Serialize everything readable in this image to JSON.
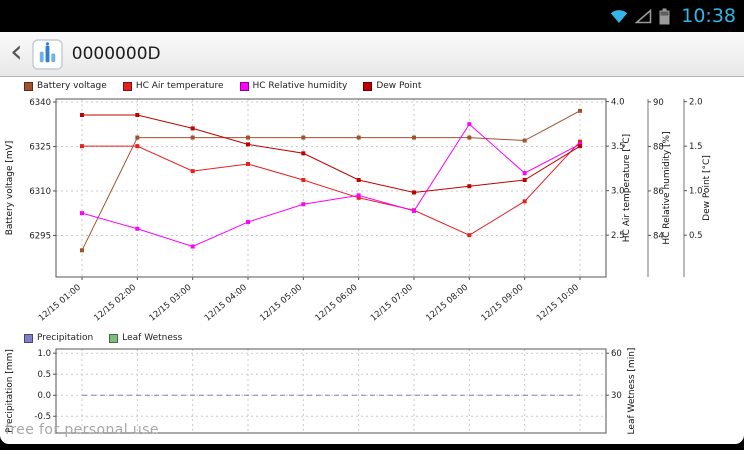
{
  "status_bar": {
    "time": "10:38"
  },
  "app_bar": {
    "back_glyph": "‹",
    "title": "0000000D"
  },
  "watermark": "free for personal use",
  "chart_data": [
    {
      "type": "line",
      "title": "",
      "legend_position": "top-left",
      "grid": true,
      "x_tick_labels_visible": true,
      "categories": [
        "12/15 01:00",
        "12/15 02:00",
        "12/15 03:00",
        "12/15 04:00",
        "12/15 05:00",
        "12/15 06:00",
        "12/15 07:00",
        "12/15 08:00",
        "12/15 09:00",
        "12/15 10:00"
      ],
      "left_axis": {
        "label": "Battery voltage [mV]",
        "ticks": [
          "6340",
          "6325",
          "6310",
          "6295"
        ],
        "range": [
          6281,
          6341
        ]
      },
      "right_axes": [
        {
          "label": "HC Air temperature [°C]",
          "ticks": [
            "4.0",
            "3.5",
            "3.0",
            "2.5"
          ],
          "range": [
            2.03,
            4.03
          ]
        },
        {
          "label": "HC Relative humidity [%]",
          "ticks": [
            "90",
            "88",
            "86",
            "84"
          ],
          "range": [
            82.13,
            90.13
          ]
        },
        {
          "label": "Dew Point [°C]",
          "ticks": [
            "2.0",
            "1.5",
            "1.0",
            "0.5"
          ],
          "range": [
            0.03,
            2.03
          ]
        }
      ],
      "series": [
        {
          "name": "Battery voltage",
          "color": "#a0522d",
          "axis": "left",
          "values": [
            6290,
            6328,
            6328,
            6328,
            6328,
            6328,
            6328,
            6328,
            6327,
            6337
          ]
        },
        {
          "name": "HC Air temperature",
          "color": "#e62020",
          "axis": "right0",
          "values": [
            3.5,
            3.5,
            3.22,
            3.3,
            3.12,
            2.92,
            2.78,
            2.5,
            2.88,
            3.55
          ]
        },
        {
          "name": "HC Relative humidity",
          "color": "#ff00ff",
          "axis": "right1",
          "values": [
            85.0,
            84.3,
            83.5,
            84.6,
            85.4,
            85.8,
            85.1,
            89.0,
            86.8,
            88.1
          ]
        },
        {
          "name": "Dew Point",
          "color": "#bf0000",
          "axis": "right2",
          "values": [
            1.85,
            1.85,
            1.7,
            1.52,
            1.42,
            1.12,
            0.98,
            1.05,
            1.12,
            1.5
          ]
        }
      ]
    },
    {
      "type": "line",
      "title": "",
      "legend_position": "top-left",
      "grid": true,
      "x_tick_labels_visible": false,
      "categories": [
        "12/15 01:00",
        "12/15 02:00",
        "12/15 03:00",
        "12/15 04:00",
        "12/15 05:00",
        "12/15 06:00",
        "12/15 07:00",
        "12/15 08:00",
        "12/15 09:00",
        "12/15 10:00"
      ],
      "left_axis": {
        "label": "Precipitation [mm]",
        "ticks": [
          "1.0",
          "0.5",
          "0.0",
          "-0.5"
        ],
        "range": [
          -0.9,
          1.1
        ]
      },
      "right_axes": [
        {
          "label": "Leaf Wetness [min]",
          "ticks": [
            "60",
            "30"
          ],
          "range": [
            3,
            63
          ]
        }
      ],
      "series": [
        {
          "name": "Precipitation",
          "color": "#8080c8",
          "axis": "left",
          "dashed": true,
          "values": [
            0,
            0,
            0,
            0,
            0,
            0,
            0,
            0,
            0,
            0
          ]
        },
        {
          "name": "Leaf Wetness",
          "color": "#7cbf7c",
          "axis": "right0",
          "values": [
            0,
            0,
            0,
            0,
            0,
            0,
            0,
            0,
            0,
            0
          ]
        }
      ]
    }
  ]
}
